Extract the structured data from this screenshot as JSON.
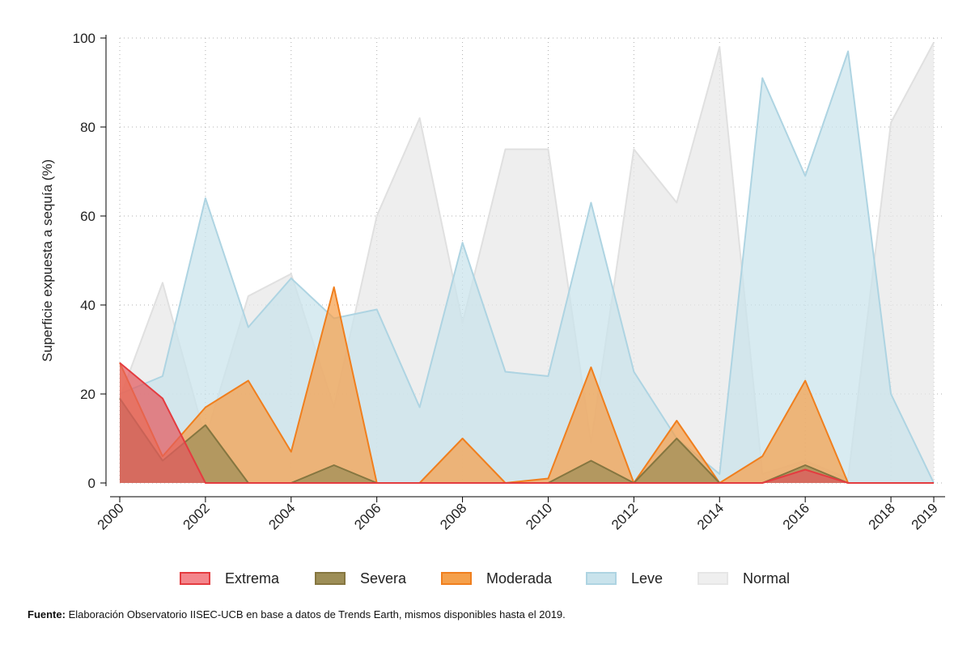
{
  "chart_data": {
    "type": "area",
    "title": "",
    "xlabel": "",
    "ylabel": "Superficie expuesta a sequía (%)",
    "xlim": [
      2000,
      2019
    ],
    "ylim": [
      0,
      100
    ],
    "x": [
      2000,
      2001,
      2002,
      2003,
      2004,
      2005,
      2006,
      2007,
      2008,
      2009,
      2010,
      2011,
      2012,
      2013,
      2014,
      2015,
      2016,
      2017,
      2018,
      2019
    ],
    "x_ticks": [
      "2000",
      "2002",
      "2004",
      "2006",
      "2008",
      "2010",
      "2012",
      "2014",
      "2016",
      "2018",
      "2019"
    ],
    "y_ticks": [
      "0",
      "20",
      "40",
      "60",
      "80",
      "100"
    ],
    "grid": true,
    "legend_position": "bottom",
    "series": [
      {
        "name": "Normal",
        "fill": "#e8e8e8",
        "stroke": "#e0e0e0",
        "values": [
          19,
          45,
          10,
          42,
          47,
          17,
          60,
          82,
          36,
          75,
          75,
          9,
          75,
          63,
          98,
          2,
          5,
          1,
          81,
          99
        ]
      },
      {
        "name": "Leve",
        "fill": "#c9e3ec",
        "stroke": "#aed4e2",
        "values": [
          20,
          24,
          64,
          35,
          46,
          37,
          39,
          17,
          54,
          25,
          24,
          63,
          25,
          10,
          2,
          91,
          69,
          97,
          20,
          0
        ]
      },
      {
        "name": "Moderada",
        "fill": "#f5a04b",
        "stroke": "#f07f1e",
        "values": [
          27,
          6,
          17,
          23,
          7,
          44,
          0,
          0,
          10,
          0,
          1,
          26,
          0,
          14,
          0,
          6,
          23,
          0,
          0,
          0
        ]
      },
      {
        "name": "Severa",
        "fill": "#9d8e57",
        "stroke": "#857640",
        "values": [
          19,
          5,
          13,
          0,
          0,
          4,
          0,
          0,
          0,
          0,
          0,
          5,
          0,
          10,
          0,
          0,
          4,
          0,
          0,
          0
        ]
      },
      {
        "name": "Extrema",
        "fill": "#e35a5e",
        "stroke": "#e43c40",
        "values": [
          27,
          19,
          0,
          0,
          0,
          0,
          0,
          0,
          0,
          0,
          0,
          0,
          0,
          0,
          0,
          0,
          3,
          0,
          0,
          0
        ]
      }
    ],
    "legend": [
      {
        "name": "Extrema",
        "fill": "#f4868c",
        "stroke": "#e43c40"
      },
      {
        "name": "Severa",
        "fill": "#9d8e57",
        "stroke": "#857640"
      },
      {
        "name": "Moderada",
        "fill": "#f5a04b",
        "stroke": "#f07f1e"
      },
      {
        "name": "Leve",
        "fill": "#c9e3ec",
        "stroke": "#aed4e2"
      },
      {
        "name": "Normal",
        "fill": "#efefef",
        "stroke": "#e6e6e6"
      }
    ]
  },
  "source": {
    "label": "Fuente:",
    "text": " Elaboración Observatorio IISEC-UCB en base a datos de Trends Earth, mismos disponibles hasta el 2019."
  }
}
